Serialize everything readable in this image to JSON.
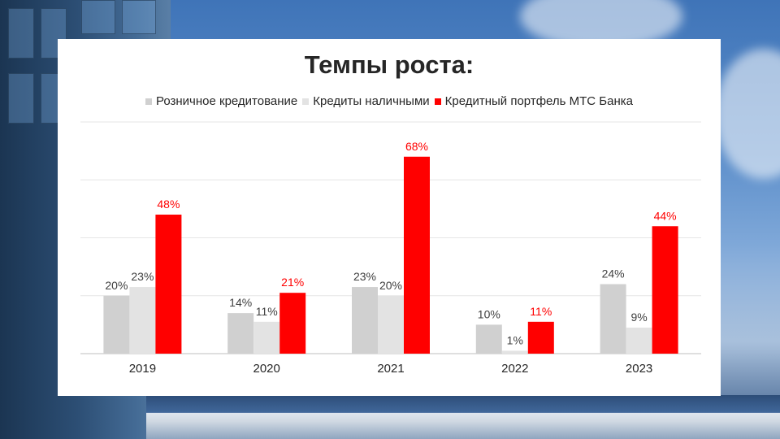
{
  "chart_data": {
    "type": "bar",
    "title": "Темпы роста:",
    "categories": [
      "2019",
      "2020",
      "2021",
      "2022",
      "2023"
    ],
    "series": [
      {
        "name": "Розничное кредитование",
        "values": [
          20,
          14,
          23,
          10,
          24
        ],
        "color": "#d0d0d0",
        "label_color": "#404040"
      },
      {
        "name": "Кредиты наличными",
        "values": [
          23,
          11,
          20,
          1,
          9
        ],
        "color": "#e3e3e3",
        "label_color": "#404040"
      },
      {
        "name": "Кредитный портфель МТС Банка",
        "values": [
          48,
          21,
          68,
          11,
          44
        ],
        "color": "#ff0000",
        "label_color": "#ff0000"
      }
    ],
    "value_suffix": "%",
    "ylim": [
      0,
      80
    ],
    "grid": true,
    "legend_position": "top"
  }
}
